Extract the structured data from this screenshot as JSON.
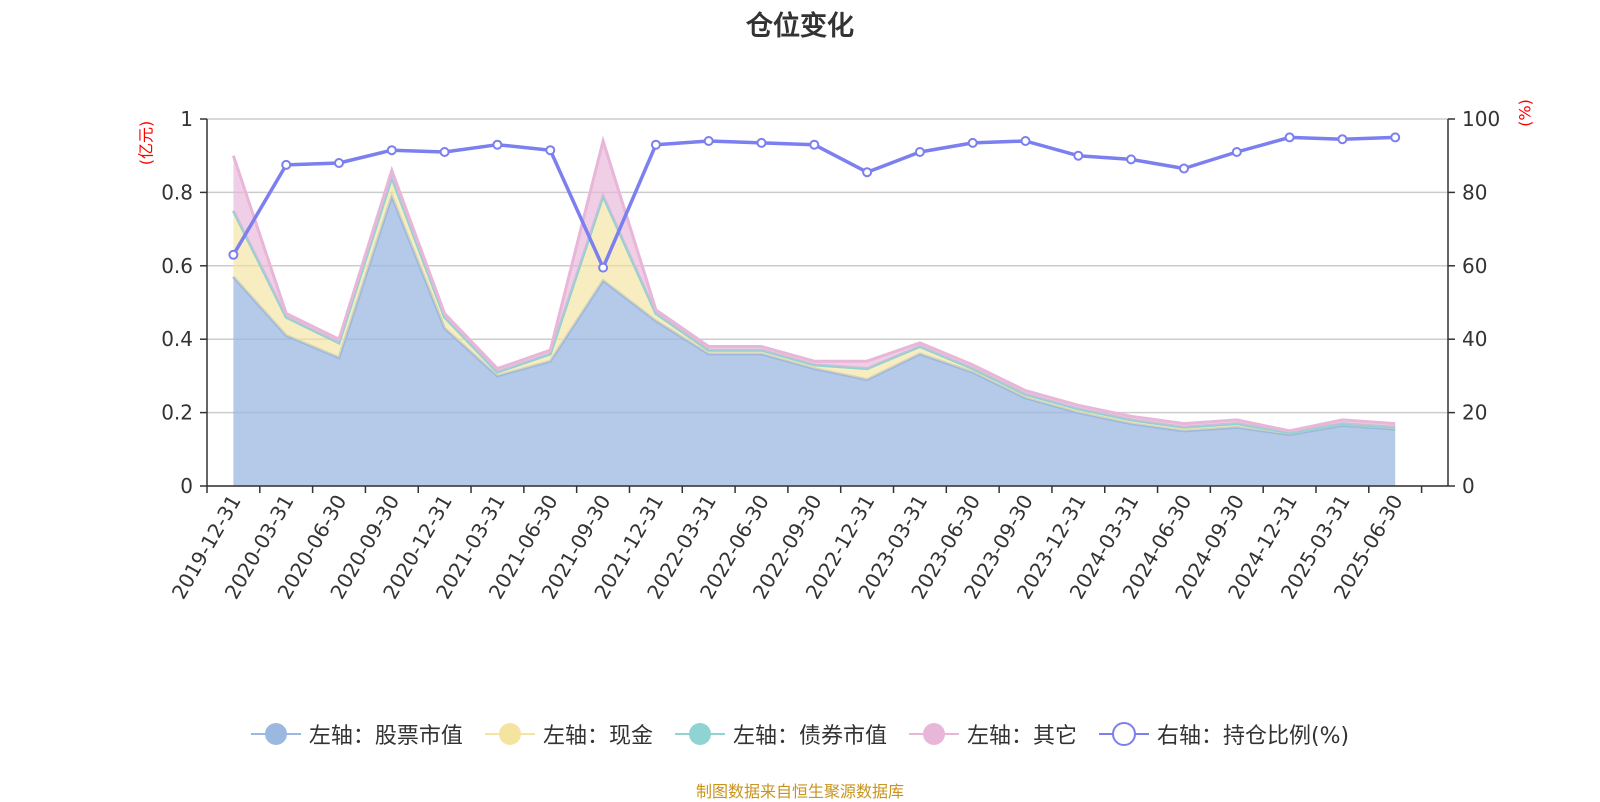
{
  "chart_data": {
    "type": "area",
    "title": "仓位变化",
    "left_axis_unit": "(亿元)",
    "right_axis_unit": "(%)",
    "x": [
      "2019-12-31",
      "2020-03-31",
      "2020-06-30",
      "2020-09-30",
      "2020-12-31",
      "2021-03-31",
      "2021-06-30",
      "2021-09-30",
      "2021-12-31",
      "2022-03-31",
      "2022-06-30",
      "2022-09-30",
      "2022-12-31",
      "2023-03-31",
      "2023-06-30",
      "2023-09-30",
      "2023-12-31",
      "2024-03-31",
      "2024-06-30",
      "2024-09-30",
      "2024-12-31",
      "2025-03-31",
      "2025-06-30"
    ],
    "left_ylim": [
      0,
      1
    ],
    "left_yticks": [
      "0",
      "0.2",
      "0.4",
      "0.6",
      "0.8",
      "1"
    ],
    "right_ylim": [
      0,
      100
    ],
    "right_yticks": [
      "0",
      "20",
      "40",
      "60",
      "80",
      "100"
    ],
    "grid": true,
    "legend_position": "bottom",
    "series": [
      {
        "name": "左轴：股票市值",
        "axis": "left",
        "kind": "stacked-area",
        "color": "#9bb8e0",
        "values": [
          0.57,
          0.41,
          0.35,
          0.79,
          0.43,
          0.3,
          0.34,
          0.56,
          0.45,
          0.36,
          0.36,
          0.32,
          0.29,
          0.36,
          0.31,
          0.24,
          0.2,
          0.17,
          0.15,
          0.16,
          0.14,
          0.165,
          0.155
        ]
      },
      {
        "name": "左轴：现金",
        "axis": "left",
        "kind": "stacked-area",
        "color": "#f5e3a0",
        "values": [
          0.18,
          0.05,
          0.04,
          0.05,
          0.03,
          0.01,
          0.02,
          0.23,
          0.02,
          0.01,
          0.01,
          0.01,
          0.03,
          0.02,
          0.01,
          0.01,
          0.01,
          0.01,
          0.01,
          0.01,
          0.005,
          0.005,
          0.005
        ]
      },
      {
        "name": "左轴：债券市值",
        "axis": "left",
        "kind": "stacked-area",
        "color": "#8fd3d3",
        "values": [
          0,
          0,
          0,
          0,
          0,
          0,
          0,
          0,
          0,
          0,
          0,
          0,
          0,
          0,
          0,
          0,
          0,
          0,
          0,
          0,
          0,
          0,
          0
        ]
      },
      {
        "name": "左轴：其它",
        "axis": "left",
        "kind": "stacked-area",
        "color": "#e8b6d8",
        "values": [
          0.15,
          0.01,
          0.01,
          0.02,
          0.01,
          0.01,
          0.01,
          0.15,
          0.01,
          0.01,
          0.01,
          0.01,
          0.02,
          0.01,
          0.01,
          0.01,
          0.01,
          0.01,
          0.01,
          0.01,
          0.005,
          0.01,
          0.01
        ]
      },
      {
        "name": "右轴：持仓比例(%)",
        "axis": "right",
        "kind": "line",
        "color": "#7b7ff0",
        "values": [
          63,
          87.5,
          88,
          91.5,
          91,
          93,
          91.5,
          59.5,
          93,
          94,
          93.5,
          93,
          85.5,
          91,
          93.5,
          94,
          90,
          89,
          86.5,
          91,
          95,
          94.5,
          95
        ]
      }
    ]
  },
  "source_note": "制图数据来自恒生聚源数据库"
}
